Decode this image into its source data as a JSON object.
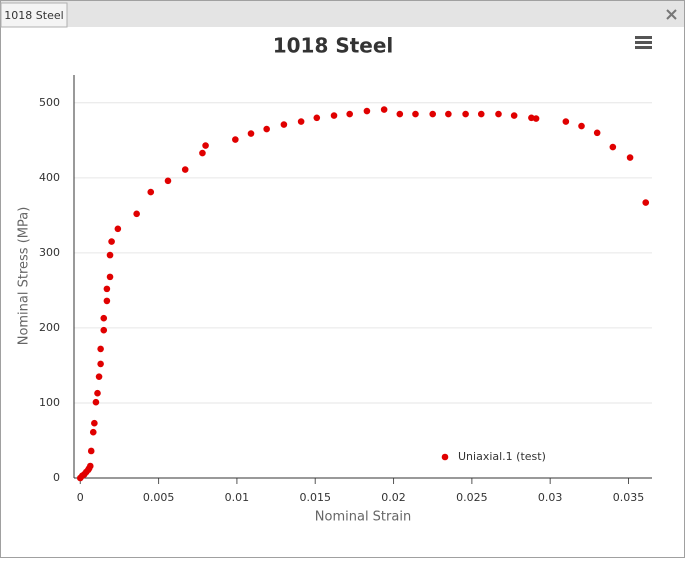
{
  "tab_label": "1018 Steel",
  "chart_data": {
    "type": "scatter",
    "title": "1018 Steel",
    "xlabel": "Nominal Strain",
    "ylabel": "Nominal Stress (MPa)",
    "x": [
      0,
      0.00013,
      0.00026,
      0.00038,
      0.00051,
      0.00057,
      0.00064,
      0.0007,
      0.00083,
      0.0009,
      0.001,
      0.0011,
      0.0012,
      0.0013,
      0.0013,
      0.0015,
      0.0015,
      0.0017,
      0.0017,
      0.0019,
      0.0019,
      0.002,
      0.0024,
      0.0036,
      0.0045,
      0.0056,
      0.0067,
      0.0078,
      0.008,
      0.0099,
      0.0109,
      0.0119,
      0.013,
      0.0141,
      0.0151,
      0.0162,
      0.0172,
      0.0183,
      0.0194,
      0.0204,
      0.0214,
      0.0225,
      0.0235,
      0.0246,
      0.0256,
      0.0267,
      0.0277,
      0.0288,
      0.0291,
      0.031,
      0.032,
      0.033,
      0.034,
      0.0351,
      0.0361
    ],
    "series": [
      {
        "name": "Uniaxial.1 (test)",
        "color": "#e00000",
        "values": [
          0,
          3,
          5,
          8,
          11,
          13,
          16,
          36,
          61,
          73,
          101,
          113,
          135,
          152,
          172,
          197,
          213,
          236,
          252,
          268,
          297,
          315,
          332,
          352,
          381,
          396,
          411,
          433,
          443,
          451,
          459,
          465,
          471,
          475,
          480,
          483,
          485,
          489,
          491,
          485,
          485,
          485,
          485,
          485,
          485,
          485,
          483,
          480,
          479,
          475,
          469,
          460,
          441,
          427,
          367
        ]
      }
    ],
    "xlim": [
      -0.0004,
      0.0365
    ],
    "ylim": [
      0,
      537
    ],
    "xticks": [
      0,
      0.005,
      0.01,
      0.015,
      0.02,
      0.025,
      0.03,
      0.035
    ],
    "yticks": [
      0,
      100,
      200,
      300,
      400,
      500
    ],
    "grid": true,
    "legend": "lower right"
  }
}
